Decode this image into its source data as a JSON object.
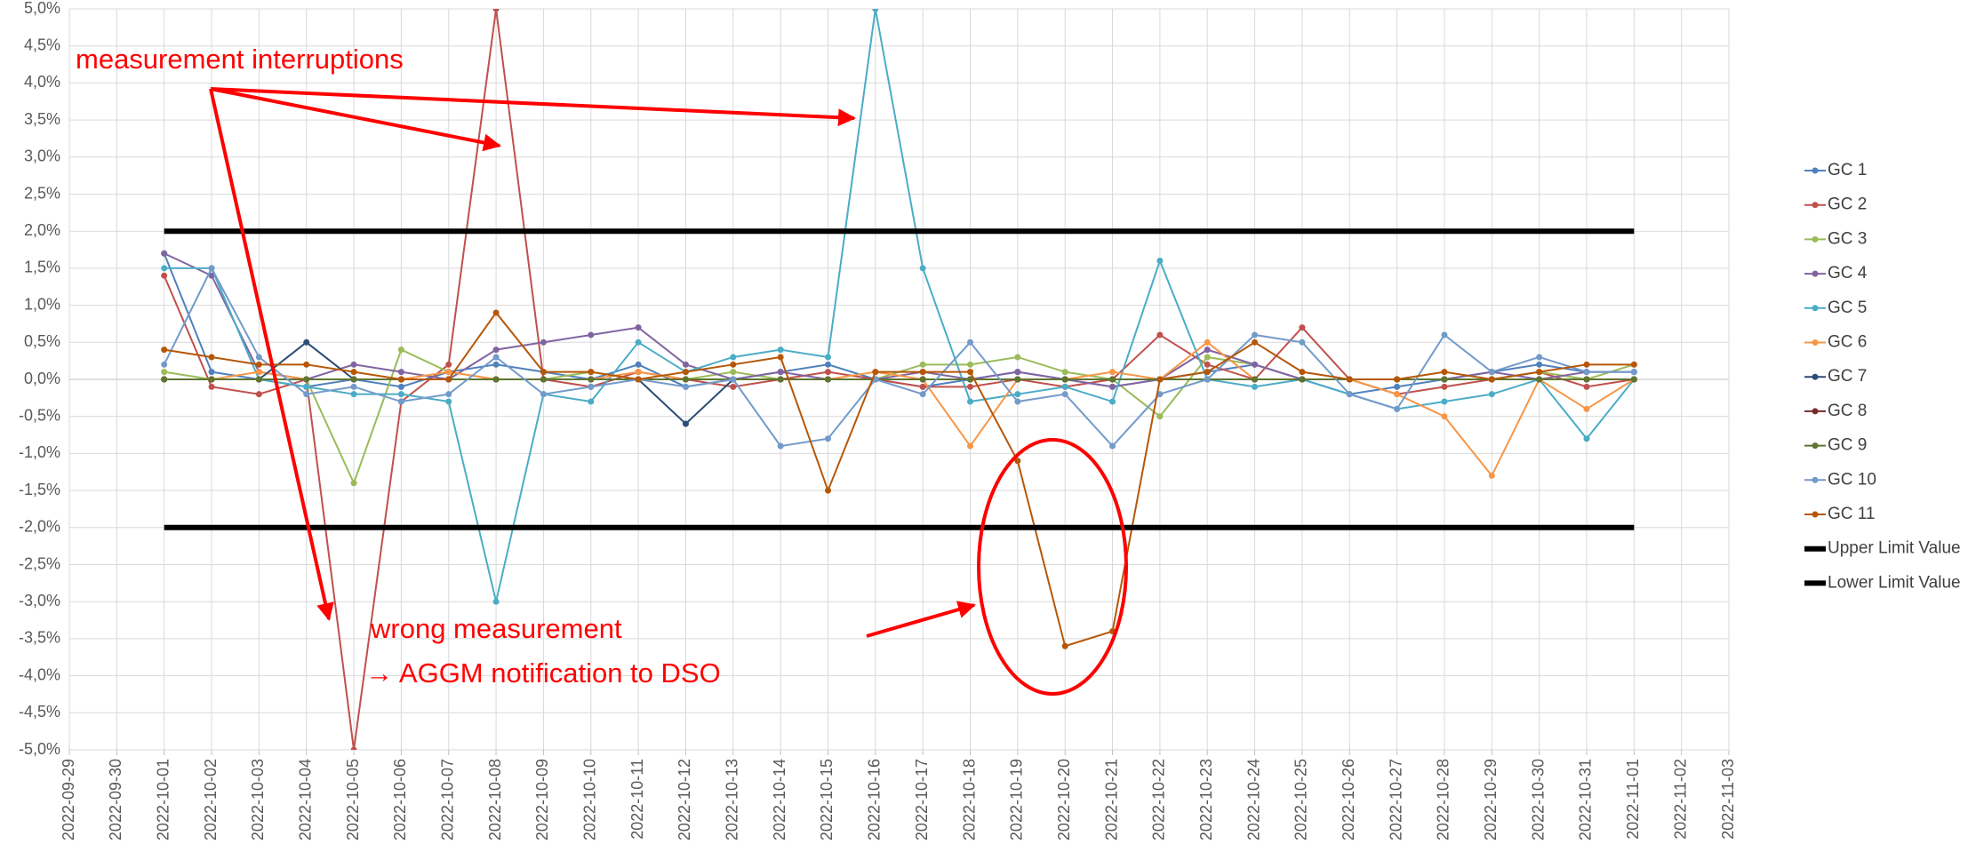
{
  "chart_data": {
    "type": "line",
    "annotations": [
      "measurement interruptions",
      "wrong measurement",
      "→ AGGM notification to DSO"
    ],
    "x": [
      "2022-10-01",
      "2022-10-02",
      "2022-10-03",
      "2022-10-04",
      "2022-10-05",
      "2022-10-06",
      "2022-10-07",
      "2022-10-08",
      "2022-10-09",
      "2022-10-10",
      "2022-10-11",
      "2022-10-12",
      "2022-10-13",
      "2022-10-14",
      "2022-10-15",
      "2022-10-16",
      "2022-10-17",
      "2022-10-18",
      "2022-10-19",
      "2022-10-20",
      "2022-10-21",
      "2022-10-22",
      "2022-10-23",
      "2022-10-24",
      "2022-10-25",
      "2022-10-26",
      "2022-10-27",
      "2022-10-28",
      "2022-10-29",
      "2022-10-30",
      "2022-10-31",
      "2022-11-01"
    ],
    "xlim": [
      "2022-09-29",
      "2022-11-03"
    ],
    "xticks": [
      "2022-09-29",
      "2022-09-30",
      "2022-10-01",
      "2022-10-02",
      "2022-10-03",
      "2022-10-04",
      "2022-10-05",
      "2022-10-06",
      "2022-10-07",
      "2022-10-08",
      "2022-10-09",
      "2022-10-10",
      "2022-10-11",
      "2022-10-12",
      "2022-10-13",
      "2022-10-14",
      "2022-10-15",
      "2022-10-16",
      "2022-10-17",
      "2022-10-18",
      "2022-10-19",
      "2022-10-20",
      "2022-10-21",
      "2022-10-22",
      "2022-10-23",
      "2022-10-24",
      "2022-10-25",
      "2022-10-26",
      "2022-10-27",
      "2022-10-28",
      "2022-10-29",
      "2022-10-30",
      "2022-10-31",
      "2022-11-01",
      "2022-11-02",
      "2022-11-03"
    ],
    "ylim": [
      -5,
      5
    ],
    "yticks": [
      {
        "value": 5,
        "label": "5,0%"
      },
      {
        "value": 4.5,
        "label": "4,5%"
      },
      {
        "value": 4,
        "label": "4,0%"
      },
      {
        "value": 3.5,
        "label": "3,5%"
      },
      {
        "value": 3,
        "label": "3,0%"
      },
      {
        "value": 2.5,
        "label": "2,5%"
      },
      {
        "value": 2,
        "label": "2,0%"
      },
      {
        "value": 1.5,
        "label": "1,5%"
      },
      {
        "value": 1,
        "label": "1,0%"
      },
      {
        "value": 0.5,
        "label": "0,5%"
      },
      {
        "value": 0,
        "label": "0,0%"
      },
      {
        "value": -0.5,
        "label": "-0,5%"
      },
      {
        "value": -1,
        "label": "-1,0%"
      },
      {
        "value": -1.5,
        "label": "-1,5%"
      },
      {
        "value": -2,
        "label": "-2,0%"
      },
      {
        "value": -2.5,
        "label": "-2,5%"
      },
      {
        "value": -3,
        "label": "-3,0%"
      },
      {
        "value": -3.5,
        "label": "-3,5%"
      },
      {
        "value": -4,
        "label": "-4,0%"
      },
      {
        "value": -4.5,
        "label": "-4,5%"
      },
      {
        "value": -5,
        "label": "-5,0%"
      }
    ],
    "grid": true,
    "legend": "right",
    "series": [
      {
        "name": "GC 1",
        "color": "#4f81bd",
        "values": [
          1.7,
          0.1,
          0.0,
          -0.1,
          0.0,
          -0.1,
          0.1,
          0.2,
          0.1,
          0.0,
          0.2,
          -0.1,
          0.0,
          0.1,
          0.2,
          0.0,
          -0.1,
          0.0,
          0.1,
          0.0,
          -0.1,
          0.0,
          0.1,
          0.2,
          0.0,
          -0.2,
          -0.1,
          0.0,
          0.1,
          0.2,
          0.1,
          0.1
        ]
      },
      {
        "name": "GC 2",
        "color": "#c0504d",
        "values": [
          1.4,
          -0.1,
          -0.2,
          0.0,
          -5.0,
          -0.3,
          0.2,
          5.0,
          0.0,
          -0.1,
          0.1,
          0.0,
          -0.1,
          0.0,
          0.1,
          0.0,
          -0.1,
          -0.1,
          0.0,
          -0.1,
          0.0,
          0.6,
          0.2,
          0.0,
          0.7,
          0.0,
          -0.2,
          -0.1,
          0.0,
          0.1,
          -0.1,
          0.0
        ]
      },
      {
        "name": "GC 3",
        "color": "#9bbb59",
        "values": [
          0.1,
          0.0,
          0.0,
          0.0,
          -1.4,
          0.4,
          0.1,
          0.0,
          0.0,
          0.1,
          0.0,
          0.0,
          0.1,
          0.0,
          0.0,
          0.0,
          0.2,
          0.2,
          0.3,
          0.1,
          0.0,
          -0.5,
          0.3,
          0.2,
          0.0,
          0.0,
          0.0,
          0.0,
          0.0,
          0.1,
          0.0,
          0.2
        ]
      },
      {
        "name": "GC 4",
        "color": "#8064a2",
        "values": [
          1.7,
          1.4,
          0.1,
          0.0,
          0.2,
          0.1,
          0.0,
          0.4,
          0.5,
          0.6,
          0.7,
          0.2,
          0.0,
          0.1,
          0.0,
          0.0,
          0.1,
          0.0,
          0.1,
          0.0,
          -0.1,
          0.0,
          0.4,
          0.2,
          0.0,
          0.0,
          0.0,
          0.0,
          0.1,
          0.0,
          0.1,
          0.1
        ]
      },
      {
        "name": "GC 5",
        "color": "#4bacc6",
        "values": [
          1.5,
          1.5,
          0.0,
          -0.1,
          -0.2,
          -0.2,
          -0.3,
          -3.0,
          -0.2,
          -0.3,
          0.5,
          0.1,
          0.3,
          0.4,
          0.3,
          5.0,
          1.5,
          -0.3,
          -0.2,
          -0.1,
          -0.3,
          1.6,
          0.0,
          -0.1,
          0.0,
          -0.2,
          -0.4,
          -0.3,
          -0.2,
          0.0,
          -0.8,
          0.0
        ]
      },
      {
        "name": "GC 6",
        "color": "#f79646",
        "values": [
          0.0,
          0.0,
          0.1,
          0.0,
          0.0,
          0.0,
          0.1,
          0.0,
          0.0,
          0.0,
          0.1,
          0.0,
          0.0,
          0.0,
          0.0,
          0.1,
          0.0,
          -0.9,
          0.0,
          0.0,
          0.1,
          0.0,
          0.5,
          0.0,
          0.0,
          0.0,
          -0.2,
          -0.5,
          -1.3,
          0.0,
          -0.4,
          0.0
        ]
      },
      {
        "name": "GC 7",
        "color": "#2c4d75",
        "values": [
          0.0,
          0.0,
          0.0,
          0.5,
          0.0,
          0.0,
          0.0,
          0.0,
          0.0,
          0.0,
          0.0,
          -0.6,
          0.0,
          0.0,
          0.0,
          0.0,
          0.0,
          0.0,
          0.0,
          0.0,
          0.0,
          0.0,
          0.0,
          0.0,
          0.0,
          0.0,
          0.0,
          0.0,
          0.0,
          0.0,
          0.0,
          0.0
        ]
      },
      {
        "name": "GC 8",
        "color": "#772c2a",
        "values": [
          0.0,
          0.0,
          0.0,
          0.0,
          0.0,
          0.0,
          0.0,
          0.0,
          0.0,
          0.0,
          0.0,
          0.0,
          0.0,
          0.0,
          0.0,
          0.0,
          0.0,
          0.0,
          0.0,
          0.0,
          0.0,
          0.0,
          0.0,
          0.0,
          0.0,
          0.0,
          0.0,
          0.0,
          0.0,
          0.0,
          0.0,
          0.0
        ]
      },
      {
        "name": "GC 9",
        "color": "#5f7530",
        "values": [
          0.0,
          0.0,
          0.0,
          0.0,
          0.0,
          0.0,
          0.0,
          0.0,
          0.0,
          0.0,
          0.0,
          0.0,
          0.0,
          0.0,
          0.0,
          0.0,
          0.0,
          0.0,
          0.0,
          0.0,
          0.0,
          0.0,
          0.0,
          0.0,
          0.0,
          0.0,
          0.0,
          0.0,
          0.0,
          0.0,
          0.0,
          0.0
        ]
      },
      {
        "name": "GC 10",
        "color": "#729aca",
        "values": [
          0.2,
          1.5,
          0.3,
          -0.2,
          -0.1,
          -0.3,
          -0.2,
          0.3,
          -0.2,
          -0.1,
          0.0,
          -0.1,
          0.0,
          -0.9,
          -0.8,
          0.0,
          -0.2,
          0.5,
          -0.3,
          -0.2,
          -0.9,
          -0.2,
          0.0,
          0.6,
          0.5,
          -0.2,
          -0.4,
          0.6,
          0.1,
          0.3,
          0.1,
          0.1
        ]
      },
      {
        "name": "GC 11",
        "color": "#b65708",
        "values": [
          0.4,
          0.3,
          0.2,
          0.2,
          0.1,
          0.0,
          0.0,
          0.9,
          0.1,
          0.1,
          0.0,
          0.1,
          0.2,
          0.3,
          -1.5,
          0.1,
          0.1,
          0.1,
          -1.1,
          -3.6,
          -3.4,
          0.0,
          0.1,
          0.5,
          0.1,
          0.0,
          0.0,
          0.1,
          0.0,
          0.1,
          0.2,
          0.2
        ]
      },
      {
        "name": "Upper Limit Value",
        "color": "#000000",
        "marker": false,
        "x": [
          "2022-10-01",
          "2022-11-01"
        ],
        "values": [
          2,
          2
        ]
      },
      {
        "name": "Lower Limit Value",
        "color": "#000000",
        "marker": false,
        "x": [
          "2022-10-01",
          "2022-11-01"
        ],
        "values": [
          -2,
          -2
        ]
      }
    ]
  }
}
